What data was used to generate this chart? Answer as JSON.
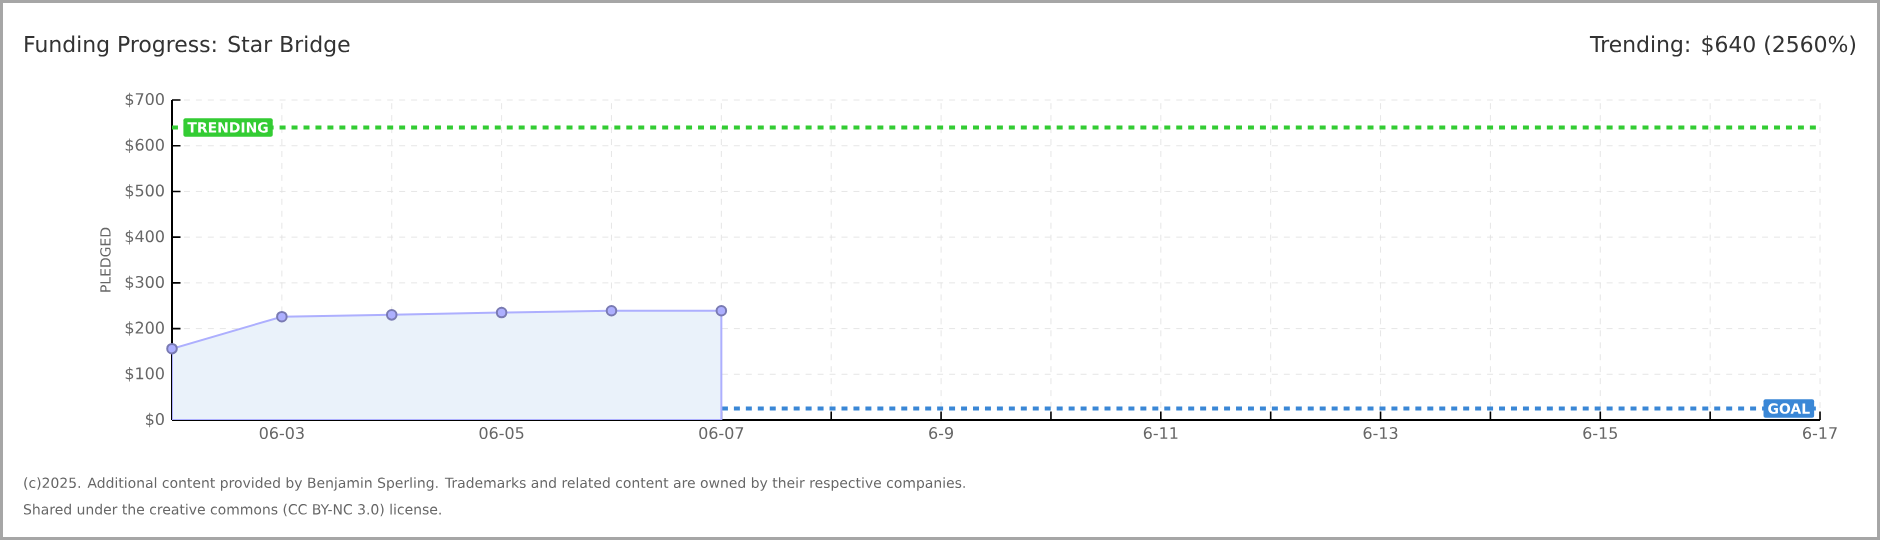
{
  "chart_data": {
    "type": "area",
    "title": "Funding Progress: Star Bridge",
    "subtitle": "Trending: $640 (2560%)",
    "ylabel": "PLEDGED",
    "categories": [
      null,
      "06-03",
      null,
      "06-05",
      null,
      "06-07",
      null,
      "6-9",
      null,
      "6-11",
      null,
      "6-13",
      null,
      "6-15",
      null,
      "6-17"
    ],
    "series": [
      {
        "color": "#eaf2fa",
        "values": [
          156,
          226,
          230,
          235,
          239,
          239,
          null,
          null,
          null,
          null,
          null,
          null,
          null,
          null,
          null,
          null
        ]
      }
    ],
    "marker": "circle",
    "grid": true,
    "ylim": [
      0,
      700
    ],
    "yticks": [
      {
        "value": 0,
        "label": "$0"
      },
      {
        "value": 100,
        "label": "$100"
      },
      {
        "value": 200,
        "label": "$200"
      },
      {
        "value": 300,
        "label": "$300"
      },
      {
        "value": 400,
        "label": "$400"
      },
      {
        "value": 500,
        "label": "$500"
      },
      {
        "value": 600,
        "label": "$600"
      },
      {
        "value": 700,
        "label": "$700"
      }
    ],
    "ref_lines": [
      {
        "axis": "y",
        "value": 640,
        "label": "TRENDING",
        "color": "#33cc33",
        "line_style": "dashed"
      },
      {
        "axis": "y",
        "value": 25,
        "label": "GOAL",
        "color": "#3a87d6",
        "line_style": "dashed"
      }
    ],
    "annotations": [
      "(c)2025. Additional content provided by Benjamin Sperling. Trademarks and related content are owned by their respective companies.",
      "Shared under the creative commons (CC BY-NC 3.0) license."
    ]
  }
}
